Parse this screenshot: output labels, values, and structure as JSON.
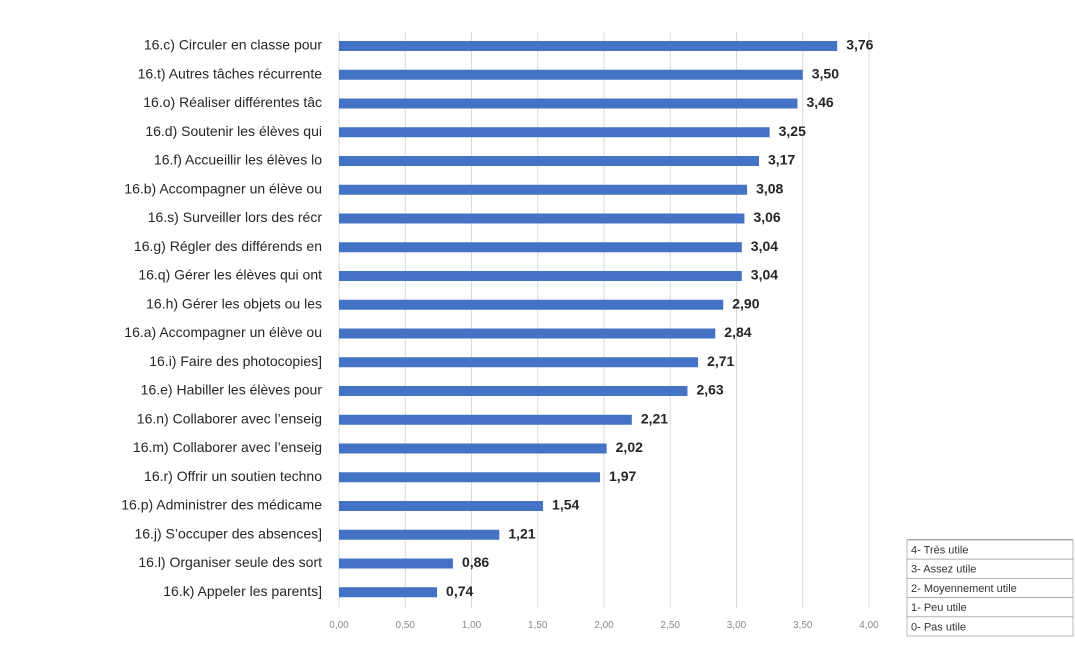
{
  "chart_data": {
    "type": "bar",
    "orientation": "horizontal",
    "categories": [
      "16.c) Circuler en classe pour",
      "16.t) Autres tâches récurrente",
      "16.o) Réaliser différentes tâc",
      "16.d) Soutenir les élèves qui",
      "16.f) Accueillir les élèves lo",
      "16.b) Accompagner un élève ou",
      "16.s) Surveiller lors des récr",
      "16.g) Régler des différends en",
      "16.q) Gérer les élèves qui ont",
      "16.h) Gérer les objets ou les",
      "16.a) Accompagner un élève ou",
      "16.i) Faire des photocopies]",
      "16.e) Habiller les élèves pour",
      "16.n) Collaborer avec l’enseig",
      "16.m) Collaborer avec l’enseig",
      "16.r) Offrir un soutien techno",
      "16.p) Administrer des médicame",
      "16.j) S’occuper des absences]",
      "16.l) Organiser seule des sort",
      "16.k) Appeler les parents]"
    ],
    "values": [
      3.76,
      3.5,
      3.46,
      3.25,
      3.17,
      3.08,
      3.06,
      3.04,
      3.04,
      2.9,
      2.84,
      2.71,
      2.63,
      2.21,
      2.02,
      1.97,
      1.54,
      1.21,
      0.86,
      0.74
    ],
    "value_labels": [
      "3,76",
      "3,50",
      "3,46",
      "3,25",
      "3,17",
      "3,08",
      "3,06",
      "3,04",
      "3,04",
      "2,90",
      "2,84",
      "2,71",
      "2,63",
      "2,21",
      "2,02",
      "1,97",
      "1,54",
      "1,21",
      "0,86",
      "0,74"
    ],
    "xlim": [
      0,
      4
    ],
    "x_ticks": [
      0,
      0.5,
      1,
      1.5,
      2,
      2.5,
      3,
      3.5,
      4
    ],
    "x_tick_labels": [
      "0,00",
      "0,50",
      "1,00",
      "1,50",
      "2,00",
      "2,50",
      "3,00",
      "3,50",
      "4,00"
    ],
    "grid": true,
    "bar_color": "#4472c4",
    "title": "",
    "xlabel": "",
    "ylabel": ""
  },
  "legend_box": {
    "items": [
      "4- Très utile",
      "3- Assez utile",
      "2- Moyennement utile",
      "1- Peu utile",
      "0- Pas utile"
    ],
    "placement": "bottom-right"
  }
}
